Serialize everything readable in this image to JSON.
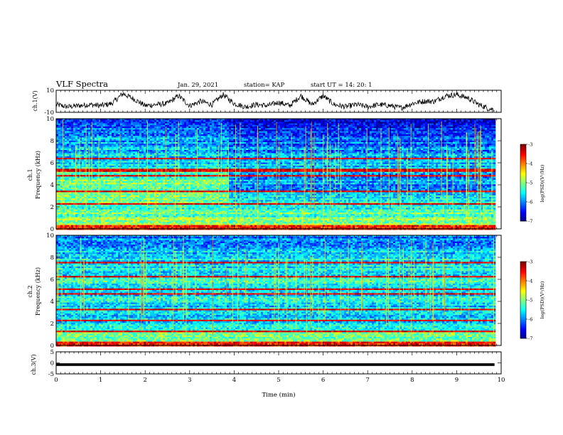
{
  "header": {
    "title": "VLF Spectra",
    "date": "Jan. 29, 2021",
    "station": "station= KAP",
    "start": "start UT =  14: 20: 1"
  },
  "chart_data": [
    {
      "type": "line",
      "name": "ch1-waveform",
      "ylabel": "ch.1(V)",
      "ylim": [
        -10,
        10
      ],
      "yticks": [
        "10",
        "-10"
      ],
      "xlim": [
        0,
        10
      ],
      "x": [
        0,
        0.25,
        0.5,
        0.75,
        1.0,
        1.25,
        1.5,
        1.75,
        2.0,
        2.25,
        2.5,
        2.75,
        3.0,
        3.25,
        3.5,
        3.75,
        4.0,
        4.25,
        4.5,
        4.75,
        5.0,
        5.25,
        5.5,
        5.75,
        6.0,
        6.25,
        6.5,
        6.75,
        7.0,
        7.25,
        7.5,
        7.75,
        8.0,
        8.25,
        8.5,
        8.75,
        9.0,
        9.25,
        9.5,
        9.75
      ],
      "y": [
        -3,
        -5,
        -4,
        -3,
        -4,
        -2,
        7,
        2,
        -4,
        -3,
        -2,
        5,
        -4,
        0,
        -3,
        6,
        -2,
        -5,
        -3,
        -4,
        -1,
        -4,
        5,
        -3,
        5,
        -3,
        -5,
        -3,
        -5,
        -3,
        -4,
        -6,
        -2,
        0,
        0,
        5,
        6,
        3,
        -3,
        -7
      ]
    },
    {
      "type": "heatmap",
      "name": "ch1-spectrogram",
      "ylabel": "ch.1",
      "ylabel2": "Frequency (kHz)",
      "yticks": [
        "0",
        "2",
        "4",
        "6",
        "8",
        "10"
      ],
      "ylim": [
        0,
        10
      ],
      "xlim": [
        0,
        10
      ],
      "colorbar": {
        "label": "log(PSD)(V²/Hz)",
        "ticks": [
          "-3",
          "-4",
          "-5",
          "-6",
          "-7"
        ],
        "range": [
          -7,
          -3
        ]
      },
      "transition_min": 3.85,
      "red_lines_khz": [
        2.3,
        3.5,
        4.9,
        5.3,
        5.5,
        6.5
      ],
      "before": [
        -4.8,
        -5.0,
        -5.2,
        -5.1,
        -5.0,
        -5.2,
        -5.6,
        -5.7,
        -5.8,
        -6.0,
        -6.3
      ],
      "after": [
        -4.9,
        -5.1,
        -5.3,
        -5.7,
        -5.9,
        -5.8,
        -5.7,
        -5.9,
        -6.1,
        -6.3,
        -6.6
      ]
    },
    {
      "type": "heatmap",
      "name": "ch2-spectrogram",
      "ylabel": "ch.2",
      "ylabel2": "Frequency (kHz)",
      "yticks": [
        "0",
        "2",
        "4",
        "6",
        "8",
        "10"
      ],
      "ylim": [
        0,
        10
      ],
      "xlim": [
        0,
        10
      ],
      "colorbar": {
        "label": "log(PSD)(V²/Hz)",
        "ticks": [
          "-3",
          "-4",
          "-5",
          "-6",
          "-7"
        ],
        "range": [
          -7,
          -3
        ]
      },
      "red_lines_khz": [
        1.3,
        2.3,
        3.3,
        4.7,
        5.2,
        6.3,
        7.6
      ],
      "profile": [
        -4.9,
        -5.1,
        -5.6,
        -5.7,
        -5.6,
        -5.5,
        -5.4,
        -5.5,
        -5.6,
        -5.8,
        -6.1
      ]
    },
    {
      "type": "line",
      "name": "ch3-waveform",
      "ylabel": "ch.3(V)",
      "ylim": [
        -5,
        5
      ],
      "yticks": [
        "5",
        "0",
        "-5"
      ],
      "xlim": [
        0,
        10
      ],
      "xlabel": "Time (min)",
      "xticks": [
        "0",
        "1",
        "2",
        "3",
        "4",
        "5",
        "6",
        "7",
        "8",
        "9",
        "10"
      ],
      "level": -0.8,
      "band": [
        -1.4,
        -0.2
      ]
    }
  ]
}
